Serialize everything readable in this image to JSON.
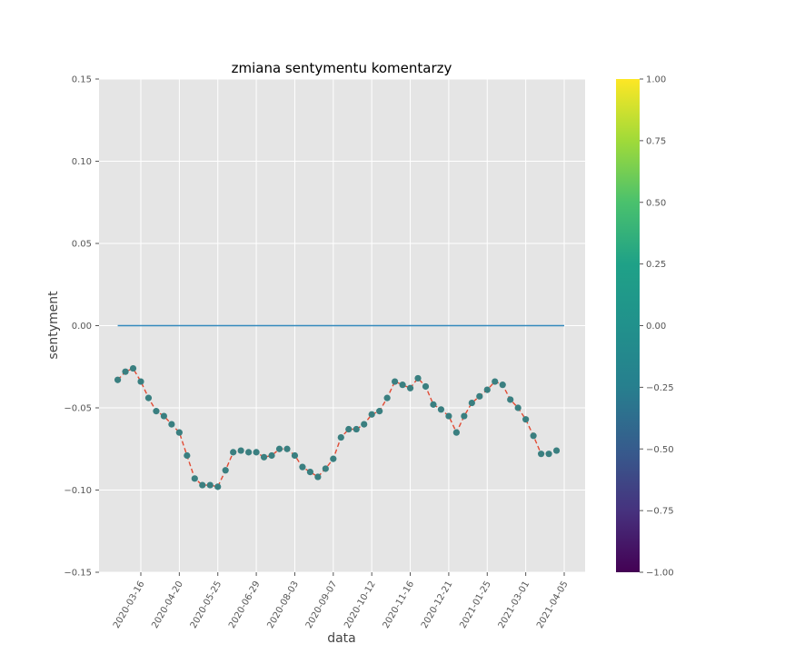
{
  "chart_data": {
    "type": "line",
    "title": "zmiana sentymentu komentarzy",
    "xlabel": "data",
    "ylabel": "sentyment",
    "ylim": [
      -0.15,
      0.15
    ],
    "y_ticks": [
      -0.15,
      -0.1,
      -0.05,
      0.0,
      0.05,
      0.1,
      0.15
    ],
    "y_tick_labels": [
      "−0.15",
      "−0.10",
      "−0.05",
      "0.00",
      "0.05",
      "0.10",
      "0.15"
    ],
    "x_tick_labels": [
      "2020-03-16",
      "2020-04-20",
      "2020-05-25",
      "2020-06-29",
      "2020-08-03",
      "2020-09-07",
      "2020-10-12",
      "2020-11-16",
      "2020-12-21",
      "2021-01-25",
      "2021-03-01",
      "2021-04-05"
    ],
    "xlim": [
      "2020-02-07",
      "2021-04-24"
    ],
    "grid": true,
    "x": [
      "2020-02-24",
      "2020-03-02",
      "2020-03-09",
      "2020-03-16",
      "2020-03-23",
      "2020-03-30",
      "2020-04-06",
      "2020-04-13",
      "2020-04-20",
      "2020-04-27",
      "2020-05-04",
      "2020-05-11",
      "2020-05-18",
      "2020-05-25",
      "2020-06-01",
      "2020-06-08",
      "2020-06-15",
      "2020-06-22",
      "2020-06-29",
      "2020-07-06",
      "2020-07-13",
      "2020-07-20",
      "2020-07-27",
      "2020-08-03",
      "2020-08-10",
      "2020-08-17",
      "2020-08-24",
      "2020-08-31",
      "2020-09-07",
      "2020-09-14",
      "2020-09-21",
      "2020-09-28",
      "2020-10-05",
      "2020-10-12",
      "2020-10-19",
      "2020-10-26",
      "2020-11-02",
      "2020-11-09",
      "2020-11-16",
      "2020-11-23",
      "2020-11-30",
      "2020-12-07",
      "2020-12-14",
      "2020-12-21",
      "2020-12-28",
      "2021-01-04",
      "2021-01-11",
      "2021-01-18",
      "2021-01-25",
      "2021-02-01",
      "2021-02-08",
      "2021-02-15",
      "2021-02-22",
      "2021-03-01",
      "2021-03-08",
      "2021-03-15",
      "2021-03-22",
      "2021-03-29"
    ],
    "series": [
      {
        "style": "scatter+dashed-line",
        "values": [
          -0.033,
          -0.028,
          -0.026,
          -0.034,
          -0.044,
          -0.052,
          -0.055,
          -0.06,
          -0.065,
          -0.079,
          -0.093,
          -0.097,
          -0.097,
          -0.098,
          -0.088,
          -0.077,
          -0.076,
          -0.077,
          -0.077,
          -0.08,
          -0.079,
          -0.075,
          -0.075,
          -0.079,
          -0.086,
          -0.089,
          -0.092,
          -0.087,
          -0.081,
          -0.068,
          -0.063,
          -0.063,
          -0.06,
          -0.054,
          -0.052,
          -0.044,
          -0.034,
          -0.036,
          -0.038,
          -0.032,
          -0.037,
          -0.048,
          -0.051,
          -0.055,
          -0.065,
          -0.055,
          -0.047,
          -0.043,
          -0.039,
          -0.034,
          -0.036,
          -0.045,
          -0.05,
          -0.057,
          -0.067,
          -0.078,
          -0.078,
          -0.076
        ]
      },
      {
        "style": "solid-line",
        "x": [
          "2020-02-24",
          "2021-04-05"
        ],
        "values": [
          0.0,
          0.0
        ]
      }
    ],
    "colorbar": {
      "colormap": "viridis",
      "range": [
        -1.0,
        1.0
      ],
      "ticks": [
        -1.0,
        -0.75,
        -0.5,
        -0.25,
        0.0,
        0.25,
        0.5,
        0.75,
        1.0
      ],
      "tick_labels": [
        "−1.00",
        "−0.75",
        "−0.50",
        "−0.25",
        "0.00",
        "0.25",
        "0.50",
        "0.75",
        "1.00"
      ]
    },
    "colors": {
      "plot_background": "#e5e5e5",
      "grid": "#ffffff",
      "marker": "#3a7f80",
      "dashed_line": "#e24a33",
      "zero_line": "#348abd"
    }
  }
}
